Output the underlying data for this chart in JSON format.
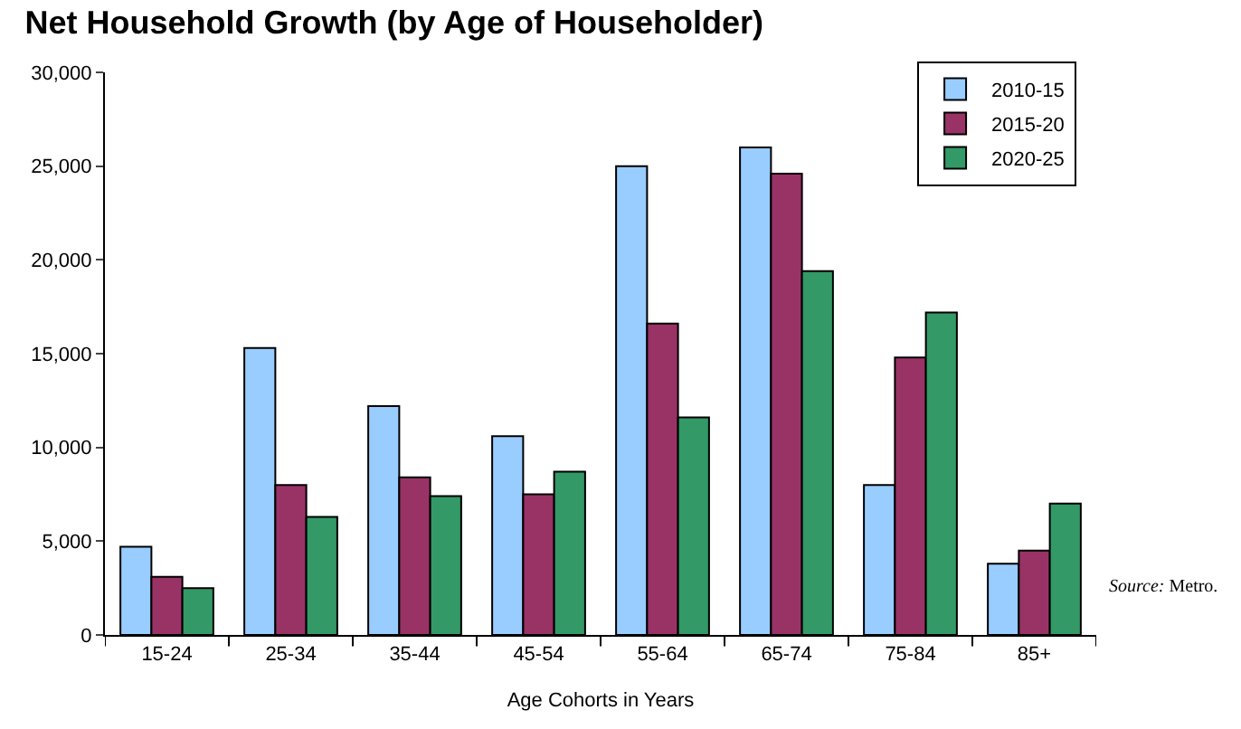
{
  "chart_data": {
    "type": "bar",
    "title": "Net Household Growth (by Age of Householder)",
    "xlabel": "Age Cohorts in Years",
    "categories": [
      "15-24",
      "25-34",
      "35-44",
      "45-54",
      "55-64",
      "65-74",
      "75-84",
      "85+"
    ],
    "series": [
      {
        "name": "2010-15",
        "color": "#99ccff",
        "values": [
          4700,
          15300,
          12200,
          10600,
          25000,
          26000,
          8000,
          3800
        ]
      },
      {
        "name": "2015-20",
        "color": "#993366",
        "values": [
          3100,
          8000,
          8400,
          7500,
          16600,
          24600,
          14800,
          4500
        ]
      },
      {
        "name": "2020-25",
        "color": "#339966",
        "values": [
          2500,
          6300,
          7400,
          8700,
          11600,
          19400,
          17200,
          7000
        ]
      }
    ],
    "ylim": [
      0,
      30000
    ],
    "yticks": [
      {
        "value": 0,
        "label": "0"
      },
      {
        "value": 5000,
        "label": "5,000"
      },
      {
        "value": 10000,
        "label": "10,000"
      },
      {
        "value": 15000,
        "label": "15,000"
      },
      {
        "value": 20000,
        "label": "20,000"
      },
      {
        "value": 25000,
        "label": "25,000"
      },
      {
        "value": 30000,
        "label": "30,000"
      }
    ],
    "legend": "top right",
    "annotations": [
      "Source: Metro."
    ]
  }
}
